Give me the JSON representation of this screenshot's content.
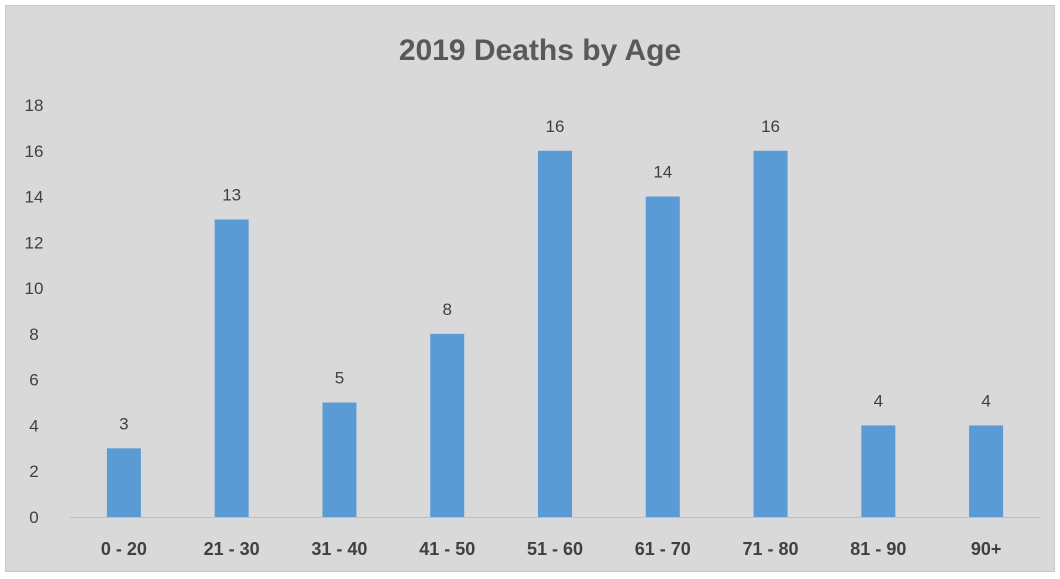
{
  "chart_data": {
    "type": "bar",
    "title": "2019 Deaths by Age",
    "xlabel": "",
    "ylabel": "",
    "categories": [
      "0 - 20",
      "21 - 30",
      "31 - 40",
      "41 - 50",
      "51 - 60",
      "61 - 70",
      "71 - 80",
      "81 - 90",
      "90+"
    ],
    "values": [
      3,
      13,
      5,
      8,
      16,
      14,
      16,
      4,
      4
    ],
    "ylim": [
      0,
      18
    ],
    "yticks": [
      0,
      2,
      4,
      6,
      8,
      10,
      12,
      14,
      16,
      18
    ],
    "grid": false,
    "legend": "none",
    "data_labels": true,
    "colors": {
      "bar": "#5b9bd5",
      "background": "#d9d9d9",
      "axis_line": "#bfbfbf",
      "title": "#595959",
      "text": "#404040"
    }
  }
}
